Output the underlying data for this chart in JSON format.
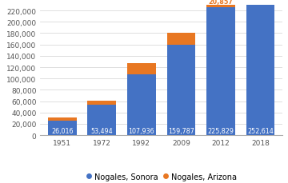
{
  "years": [
    "1951",
    "1972",
    "1992",
    "2009",
    "2012",
    "2018"
  ],
  "sonora_values": [
    26016,
    53494,
    107936,
    159787,
    225829,
    252614
  ],
  "arizona_values": [
    5000,
    7000,
    19489,
    20878,
    20857,
    0
  ],
  "sonora_color": "#4472c4",
  "arizona_color": "#e87722",
  "bg_color": "#ffffff",
  "grid_color": "#d9d9d9",
  "ylim": [
    0,
    230000
  ],
  "yticks": [
    0,
    20000,
    40000,
    60000,
    80000,
    100000,
    120000,
    140000,
    160000,
    180000,
    200000,
    220000
  ],
  "sonora_label": "Nogales, Sonora",
  "arizona_label": "Nogales, Arizona",
  "bar_width": 0.72,
  "annotation_color_sonora": "#ffffff",
  "annotation_color_arizona": "#e87722",
  "annotation_fontsize": 5.8,
  "legend_fontsize": 7.0,
  "tick_fontsize": 6.5
}
